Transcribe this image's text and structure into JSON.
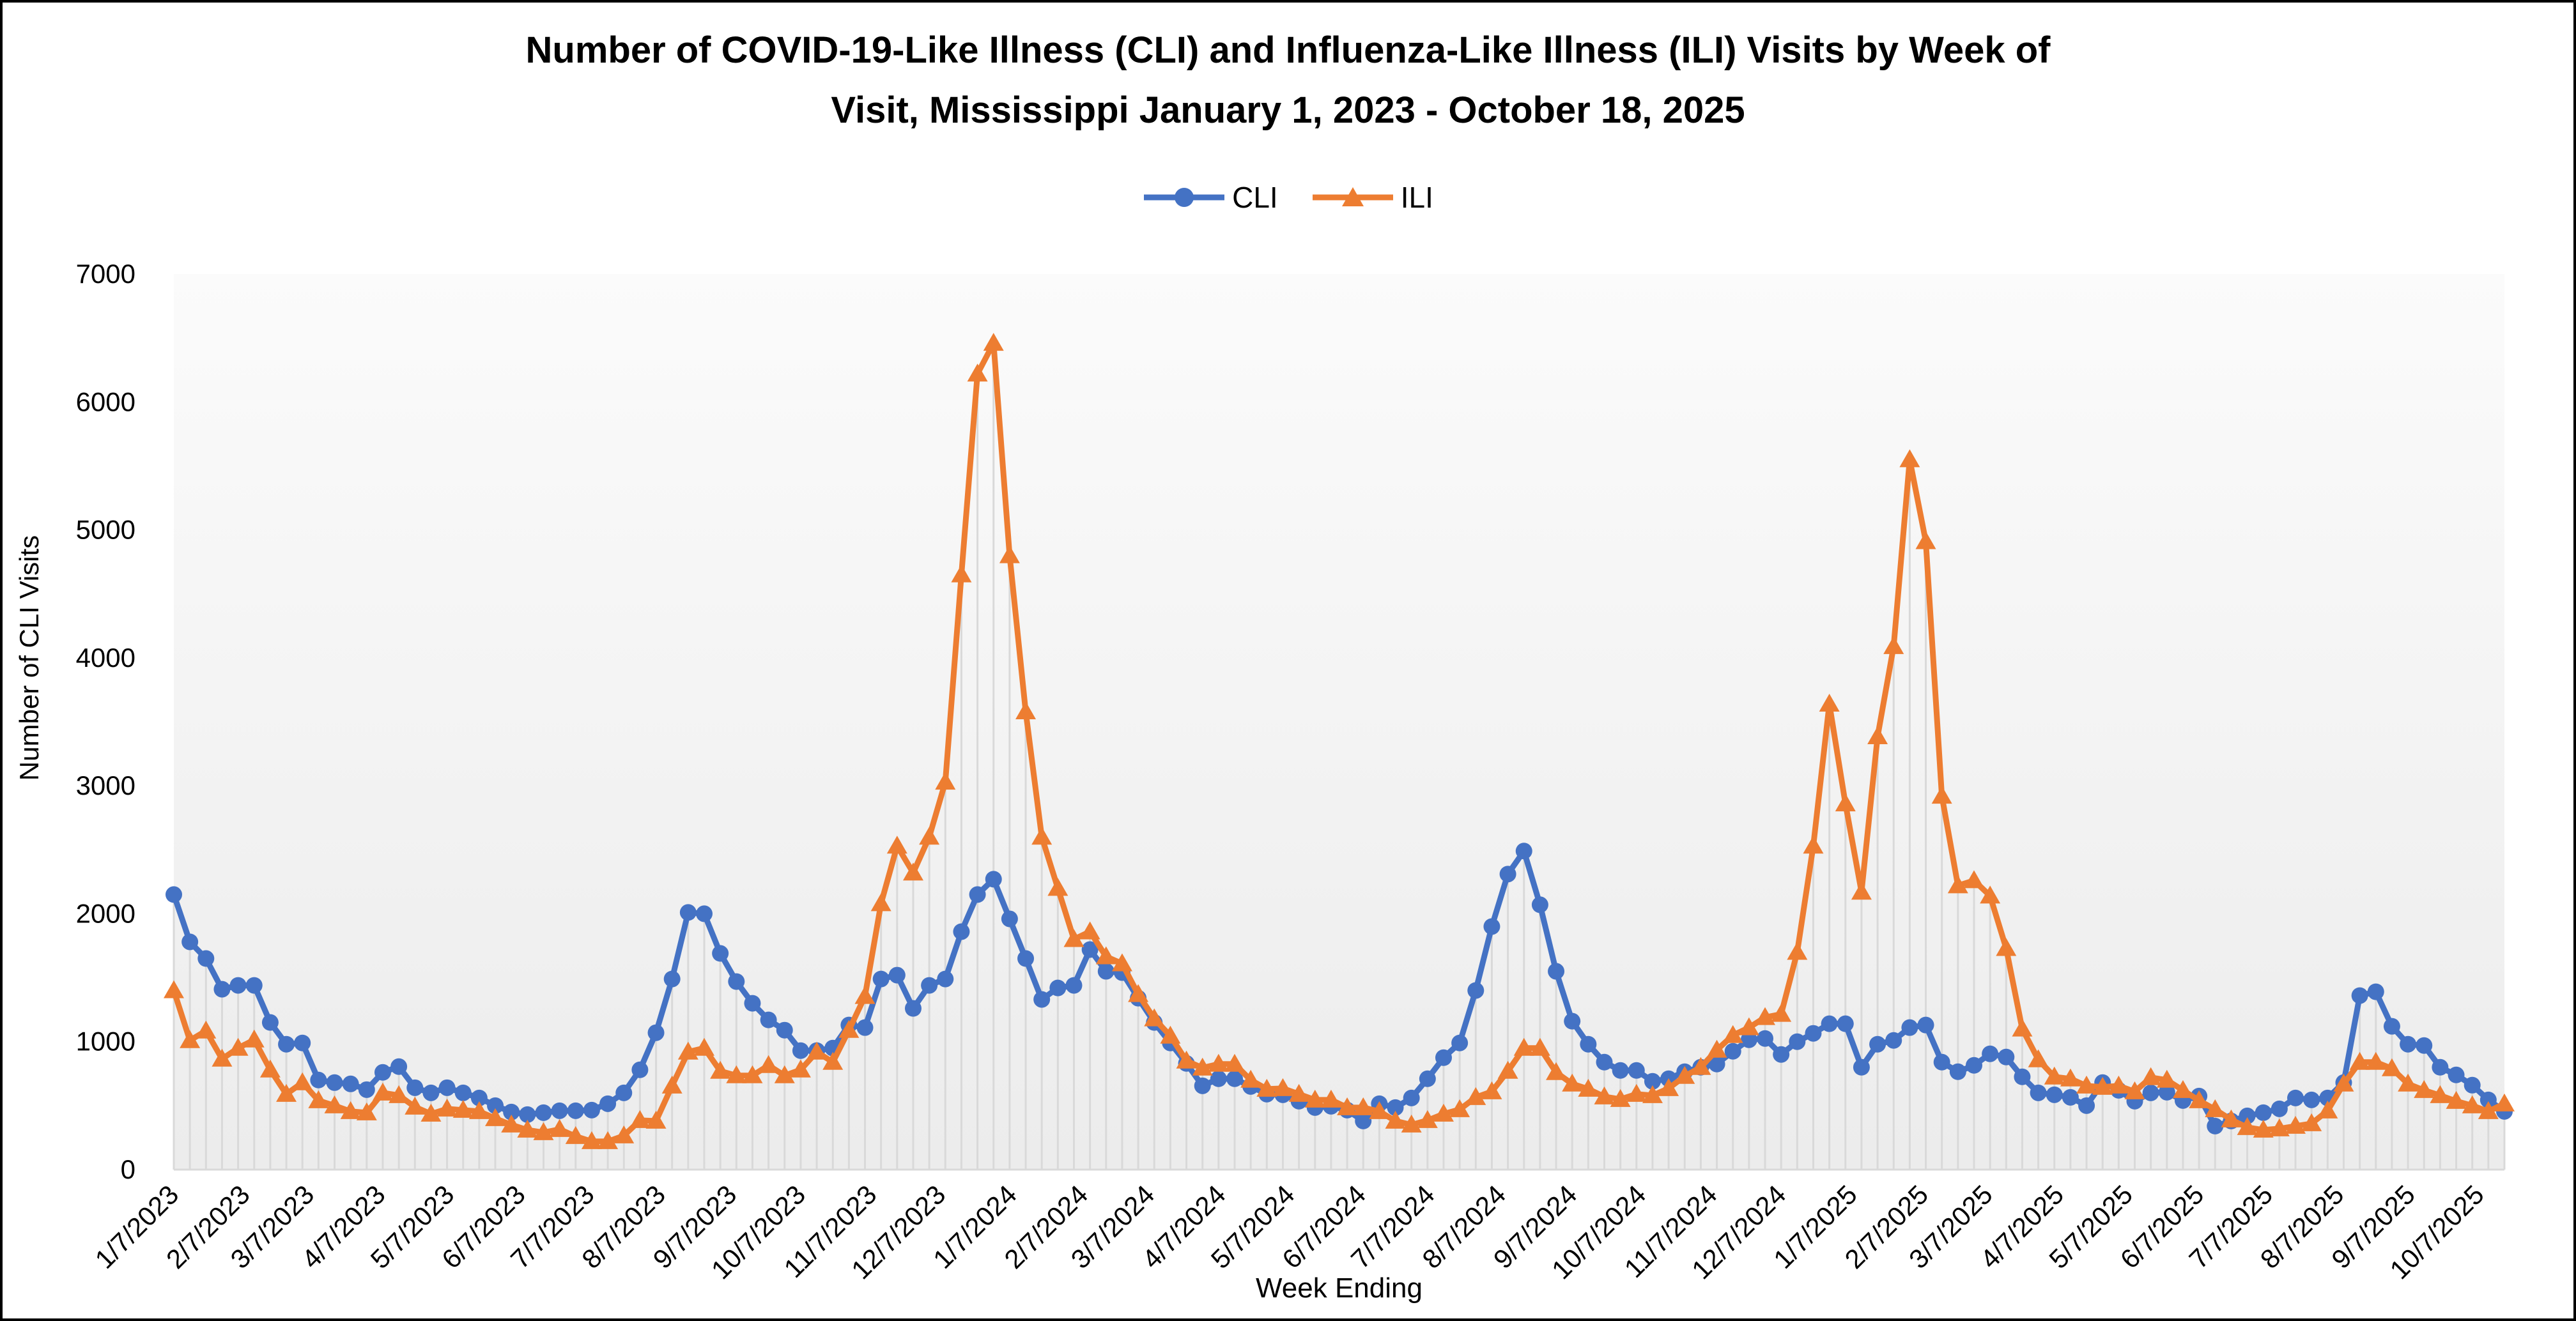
{
  "chart_data": {
    "type": "line",
    "title": "Number of COVID-19-Like Illness (CLI) and Influenza-Like Illness (ILI) Visits by Week of Visit, Mississippi January 1, 2023 - October 18, 2025",
    "title_line1": "Number of COVID-19-Like Illness (CLI) and Influenza-Like Illness (ILI) Visits by Week of",
    "title_line2": "Visit, Mississippi January 1, 2023 - October 18, 2025",
    "xlabel": "Week Ending",
    "ylabel": "Number of CLI Visits",
    "ylim": [
      0,
      7000
    ],
    "y_ticks": [
      0,
      1000,
      2000,
      3000,
      4000,
      5000,
      6000,
      7000
    ],
    "x_tick_labels": [
      "1/7/2023",
      "2/7/2023",
      "3/7/2023",
      "4/7/2023",
      "5/7/2023",
      "6/7/2023",
      "7/7/2023",
      "8/7/2023",
      "9/7/2023",
      "10/7/2023",
      "11/7/2023",
      "12/7/2023",
      "1/7/2024",
      "2/7/2024",
      "3/7/2024",
      "4/7/2024",
      "5/7/2024",
      "6/7/2024",
      "7/7/2024",
      "8/7/2024",
      "9/7/2024",
      "10/7/2024",
      "11/7/2024",
      "12/7/2024",
      "1/7/2025",
      "2/7/2025",
      "3/7/2025",
      "4/7/2025",
      "5/7/2025",
      "6/7/2025",
      "7/7/2025",
      "8/7/2025",
      "9/7/2025",
      "10/7/2025"
    ],
    "legend_position": "top-center",
    "grid": false,
    "colors": {
      "cli": "#4472C4",
      "ili": "#ED7D31",
      "dropline": "#D9D9D9",
      "axis_line": "#D9D9D9",
      "plot_bg_top": "#FBFBFB",
      "plot_bg_bottom": "#ECECEC",
      "text": "#000000"
    },
    "legend": [
      {
        "name": "CLI",
        "color": "#4472C4",
        "marker": "circle"
      },
      {
        "name": "ILI",
        "color": "#ED7D31",
        "marker": "triangle"
      }
    ],
    "x": [
      "1/7/2023",
      "1/14/2023",
      "1/21/2023",
      "1/28/2023",
      "2/4/2023",
      "2/11/2023",
      "2/18/2023",
      "2/25/2023",
      "3/4/2023",
      "3/11/2023",
      "3/18/2023",
      "3/25/2023",
      "4/1/2023",
      "4/8/2023",
      "4/15/2023",
      "4/22/2023",
      "4/29/2023",
      "5/6/2023",
      "5/13/2023",
      "5/20/2023",
      "5/27/2023",
      "6/3/2023",
      "6/10/2023",
      "6/17/2023",
      "6/24/2023",
      "7/1/2023",
      "7/8/2023",
      "7/15/2023",
      "7/22/2023",
      "7/29/2023",
      "8/5/2023",
      "8/12/2023",
      "8/19/2023",
      "8/26/2023",
      "9/2/2023",
      "9/9/2023",
      "9/16/2023",
      "9/23/2023",
      "9/30/2023",
      "10/7/2023",
      "10/14/2023",
      "10/21/2023",
      "10/28/2023",
      "11/4/2023",
      "11/11/2023",
      "11/18/2023",
      "11/25/2023",
      "12/2/2023",
      "12/9/2023",
      "12/16/2023",
      "12/23/2023",
      "12/30/2023",
      "1/6/2024",
      "1/13/2024",
      "1/20/2024",
      "1/27/2024",
      "2/3/2024",
      "2/10/2024",
      "2/17/2024",
      "2/24/2024",
      "3/2/2024",
      "3/9/2024",
      "3/16/2024",
      "3/23/2024",
      "3/30/2024",
      "4/6/2024",
      "4/13/2024",
      "4/20/2024",
      "4/27/2024",
      "5/4/2024",
      "5/11/2024",
      "5/18/2024",
      "5/25/2024",
      "6/1/2024",
      "6/8/2024",
      "6/15/2024",
      "6/22/2024",
      "6/29/2024",
      "7/6/2024",
      "7/13/2024",
      "7/20/2024",
      "7/27/2024",
      "8/3/2024",
      "8/10/2024",
      "8/17/2024",
      "8/24/2024",
      "8/31/2024",
      "9/7/2024",
      "9/14/2024",
      "9/21/2024",
      "9/28/2024",
      "10/5/2024",
      "10/12/2024",
      "10/19/2024",
      "10/26/2024",
      "11/2/2024",
      "11/9/2024",
      "11/16/2024",
      "11/23/2024",
      "11/30/2024",
      "12/7/2024",
      "12/14/2024",
      "12/21/2024",
      "12/28/2024",
      "1/4/2025",
      "1/11/2025",
      "1/18/2025",
      "1/25/2025",
      "2/1/2025",
      "2/8/2025",
      "2/15/2025",
      "2/22/2025",
      "3/1/2025",
      "3/8/2025",
      "3/15/2025",
      "3/22/2025",
      "3/29/2025",
      "4/5/2025",
      "4/12/2025",
      "4/19/2025",
      "4/26/2025",
      "5/3/2025",
      "5/10/2025",
      "5/17/2025",
      "5/24/2025",
      "5/31/2025",
      "6/7/2025",
      "6/14/2025",
      "6/21/2025",
      "6/28/2025",
      "7/5/2025",
      "7/12/2025",
      "7/19/2025",
      "7/26/2025",
      "8/2/2025",
      "8/9/2025",
      "8/16/2025",
      "8/23/2025",
      "8/30/2025",
      "9/6/2025",
      "9/13/2025",
      "9/20/2025",
      "9/27/2025",
      "10/4/2025",
      "10/11/2025",
      "10/18/2025"
    ],
    "series": [
      {
        "name": "CLI",
        "values": [
          2150,
          1780,
          1650,
          1410,
          1440,
          1440,
          1150,
          980,
          990,
          700,
          680,
          670,
          625,
          760,
          805,
          640,
          600,
          640,
          600,
          560,
          500,
          450,
          430,
          445,
          460,
          460,
          465,
          515,
          600,
          780,
          1070,
          1490,
          2010,
          2000,
          1690,
          1470,
          1300,
          1170,
          1090,
          930,
          930,
          950,
          1130,
          1110,
          1490,
          1520,
          1260,
          1440,
          1490,
          1860,
          2150,
          2270,
          1960,
          1650,
          1330,
          1420,
          1440,
          1720,
          1550,
          1540,
          1340,
          1150,
          990,
          830,
          655,
          710,
          710,
          650,
          590,
          585,
          535,
          485,
          495,
          465,
          380,
          515,
          485,
          560,
          710,
          875,
          990,
          1400,
          1900,
          2310,
          2490,
          2070,
          1550,
          1160,
          980,
          840,
          775,
          775,
          690,
          710,
          765,
          800,
          825,
          925,
          1015,
          1025,
          900,
          1000,
          1065,
          1140,
          1140,
          800,
          980,
          1010,
          1110,
          1130,
          840,
          765,
          815,
          905,
          880,
          725,
          600,
          585,
          565,
          500,
          680,
          620,
          535,
          600,
          605,
          540,
          575,
          340,
          380,
          420,
          445,
          475,
          560,
          545,
          560,
          680,
          1360,
          1390,
          1120,
          980,
          970,
          800,
          740,
          660,
          545,
          455
        ]
      },
      {
        "name": "ILI",
        "values": [
          1400,
          1010,
          1085,
          865,
          950,
          1015,
          780,
          590,
          680,
          540,
          500,
          455,
          445,
          600,
          580,
          490,
          435,
          475,
          465,
          455,
          400,
          350,
          310,
          290,
          315,
          260,
          220,
          220,
          265,
          385,
          380,
          655,
          920,
          950,
          770,
          735,
          735,
          815,
          735,
          780,
          920,
          840,
          1090,
          1355,
          2080,
          2530,
          2320,
          2600,
          3030,
          4650,
          6220,
          6460,
          4800,
          3580,
          2600,
          2200,
          1800,
          1860,
          1665,
          1610,
          1370,
          1180,
          1045,
          850,
          795,
          825,
          825,
          700,
          630,
          635,
          590,
          545,
          545,
          485,
          485,
          455,
          380,
          350,
          385,
          435,
          470,
          565,
          610,
          770,
          950,
          950,
          760,
          670,
          630,
          570,
          550,
          590,
          580,
          635,
          730,
          800,
          935,
          1050,
          1110,
          1190,
          1215,
          1700,
          2530,
          3640,
          2860,
          2170,
          3385,
          4090,
          5550,
          4910,
          2920,
          2220,
          2260,
          2140,
          1730,
          1100,
          860,
          725,
          710,
          655,
          645,
          655,
          610,
          720,
          700,
          620,
          540,
          470,
          390,
          330,
          310,
          320,
          340,
          360,
          460,
          670,
          840,
          840,
          790,
          670,
          620,
          580,
          535,
          500,
          455,
          515
        ]
      }
    ]
  }
}
